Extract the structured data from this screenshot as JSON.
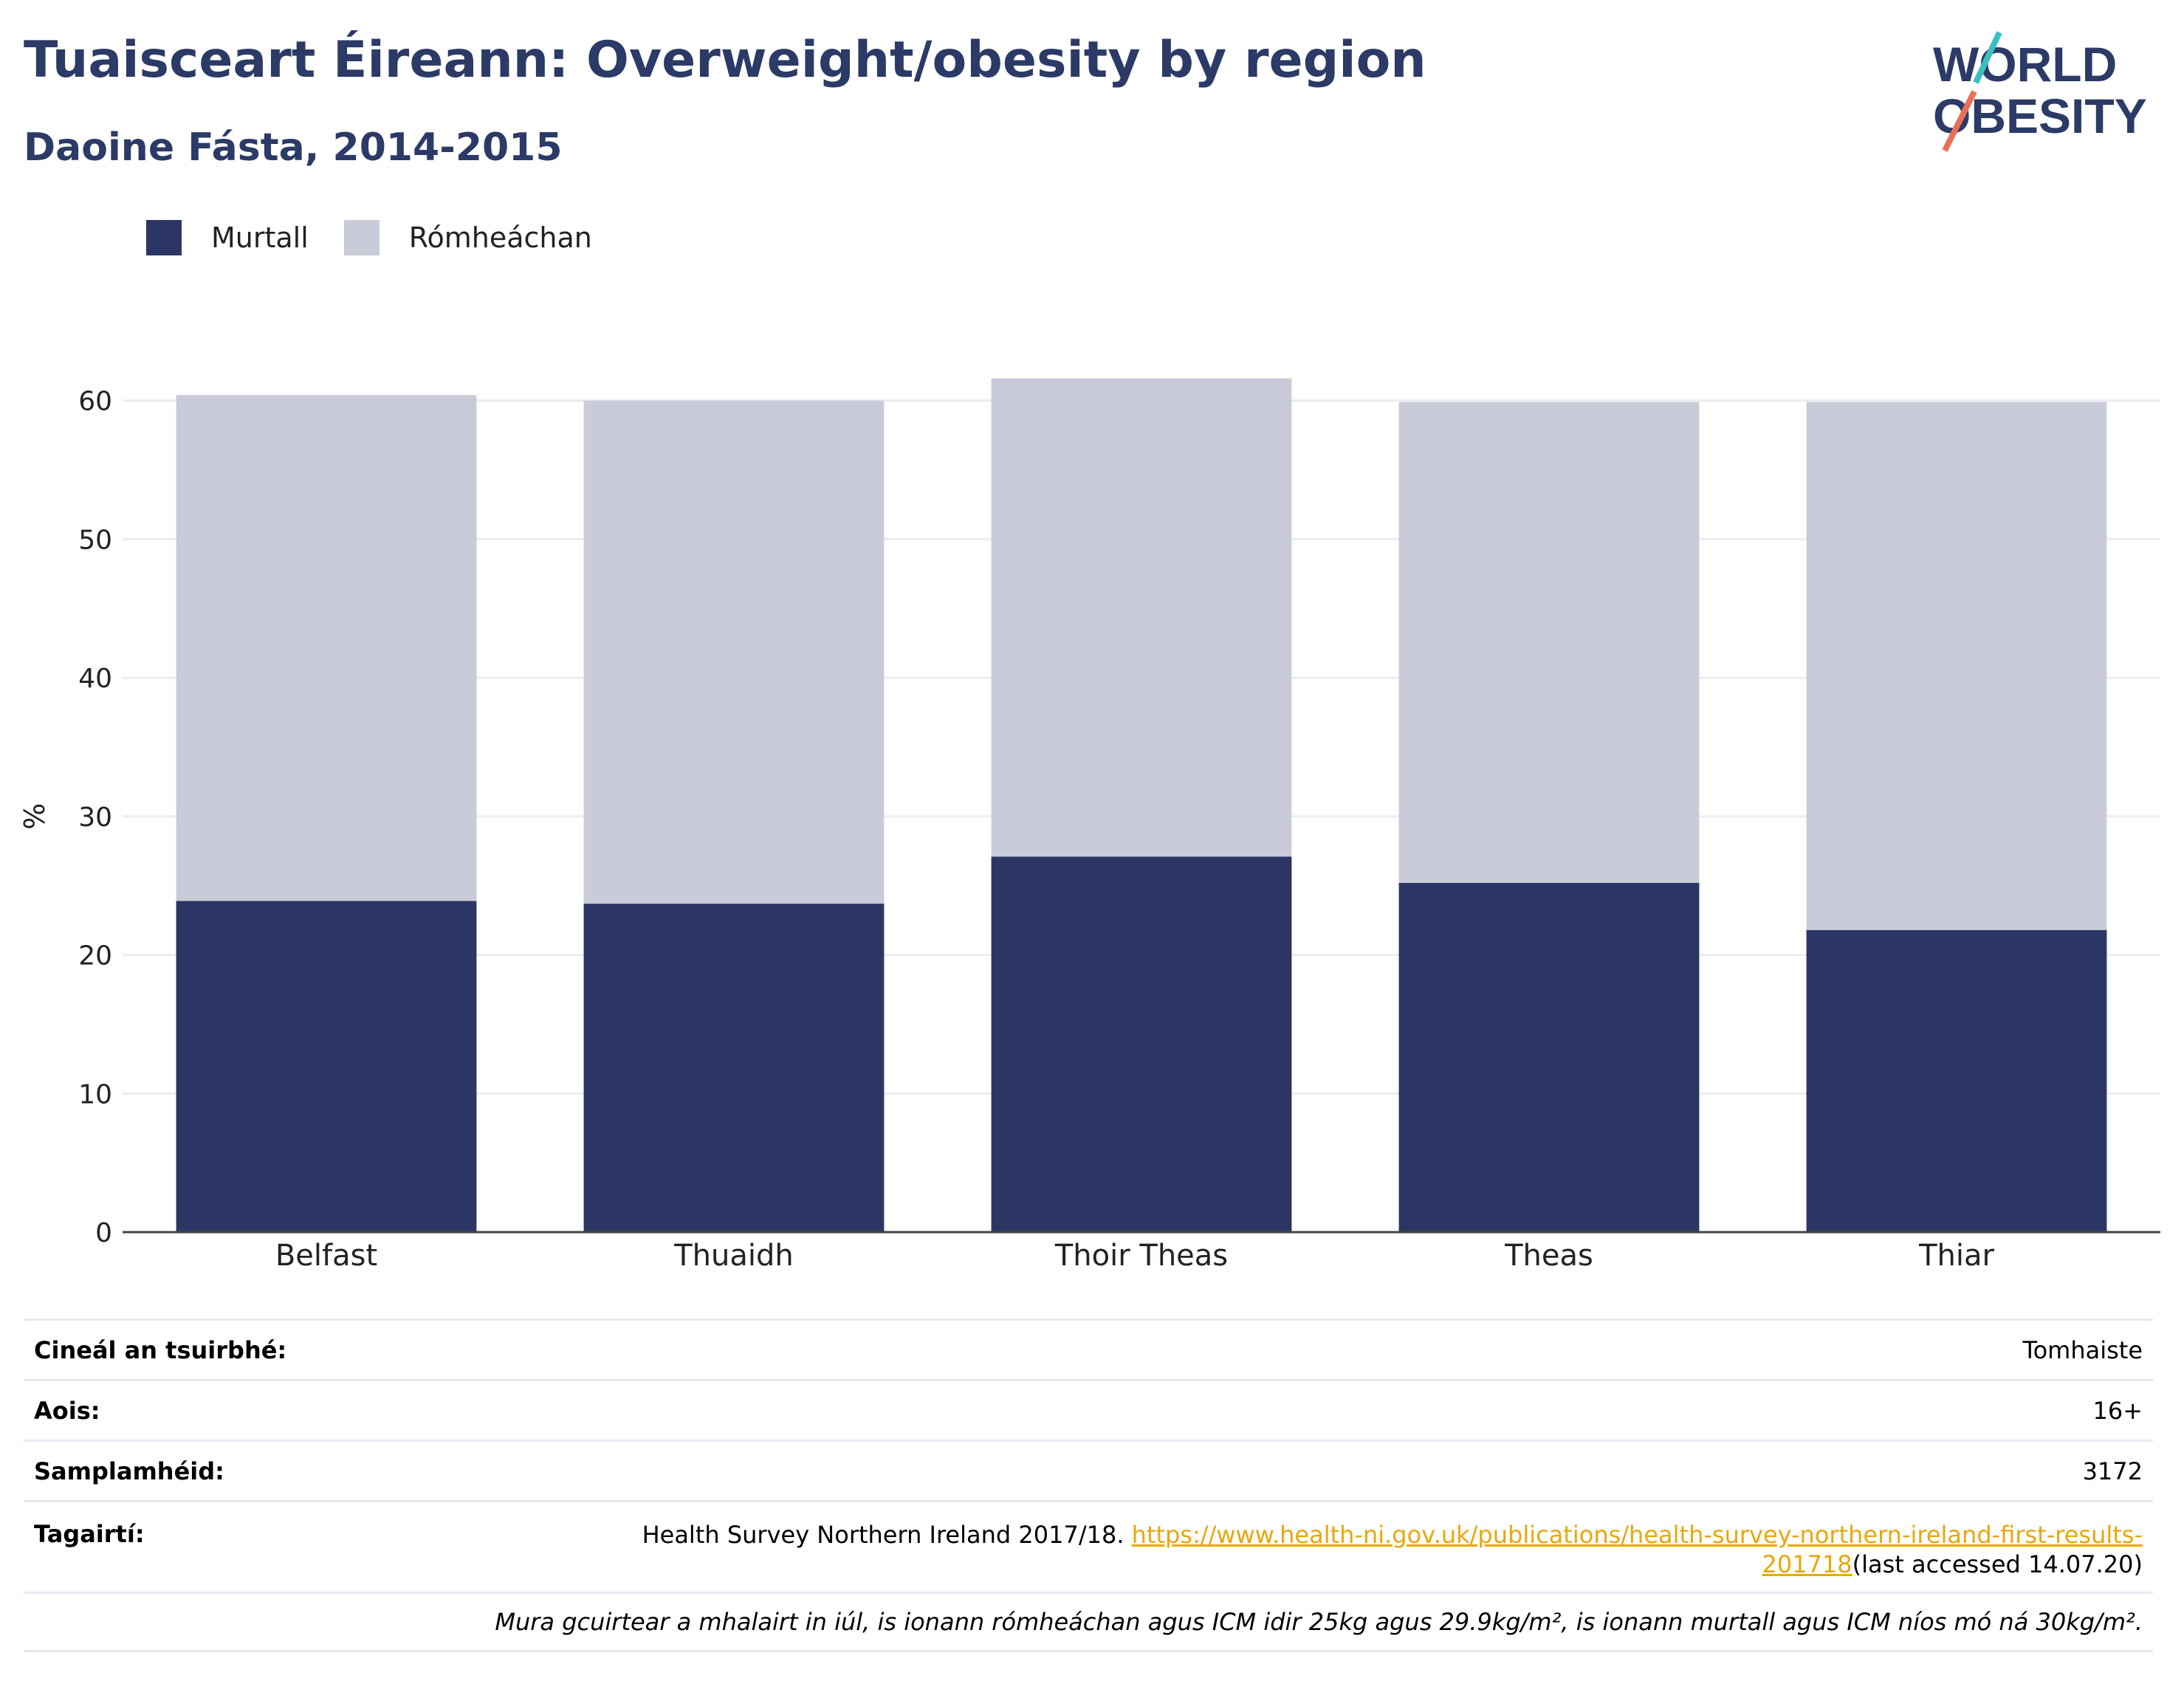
{
  "header": {
    "title": "Tuaisceart Éireann: Overweight/obesity by region",
    "subtitle": "Daoine Fásta, 2014-2015"
  },
  "logo": {
    "line1": "WORLD",
    "line2": "OBESITY",
    "colors": {
      "text": "#2b3a66",
      "slash_top": "#3bbfbf",
      "slash_bottom": "#e8705a"
    }
  },
  "legend": [
    {
      "label": "Murtall",
      "color": "#2b3664"
    },
    {
      "label": "Rómheáchan",
      "color": "#c9ccd8"
    }
  ],
  "chart_data": {
    "type": "bar",
    "stacked": true,
    "categories": [
      "Belfast",
      "Thuaidh",
      "Thoir Theas",
      "Theas",
      "Thiar"
    ],
    "series": [
      {
        "name": "Murtall",
        "color": "#2b3664",
        "values": [
          23.9,
          23.7,
          27.1,
          25.2,
          21.8
        ]
      },
      {
        "name": "Rómheáchan",
        "color": "#c9ccd8",
        "values": [
          36.5,
          36.3,
          34.5,
          34.7,
          38.1
        ]
      }
    ],
    "ylabel": "%",
    "ylim": [
      0,
      66
    ],
    "yticks": [
      "0",
      "10",
      "20",
      "30",
      "40",
      "50",
      "60"
    ],
    "grid": true,
    "legend_position": "top-left"
  },
  "meta": {
    "survey_type_label": "Cineál an tsuirbhé:",
    "survey_type_value": "Tomhaiste",
    "age_label": "Aois:",
    "age_value": "16+",
    "sample_label": "Samplamhéid:",
    "sample_value": "3172",
    "refs_label": "Tagairtí:",
    "refs_text": "Health Survey Northern Ireland 2017/18. ",
    "refs_link": "https://www.health-ni.gov.uk/publications/health-survey-northern-ireland-first-results-201718",
    "refs_suffix": "(last accessed 14.07.20)",
    "note": "Mura gcuirtear a mhalairt in iúl, is ionann rómheáchan agus ICM idir 25kg agus 29.9kg/m², is ionann murtall agus ICM níos mó ná 30kg/m²."
  }
}
